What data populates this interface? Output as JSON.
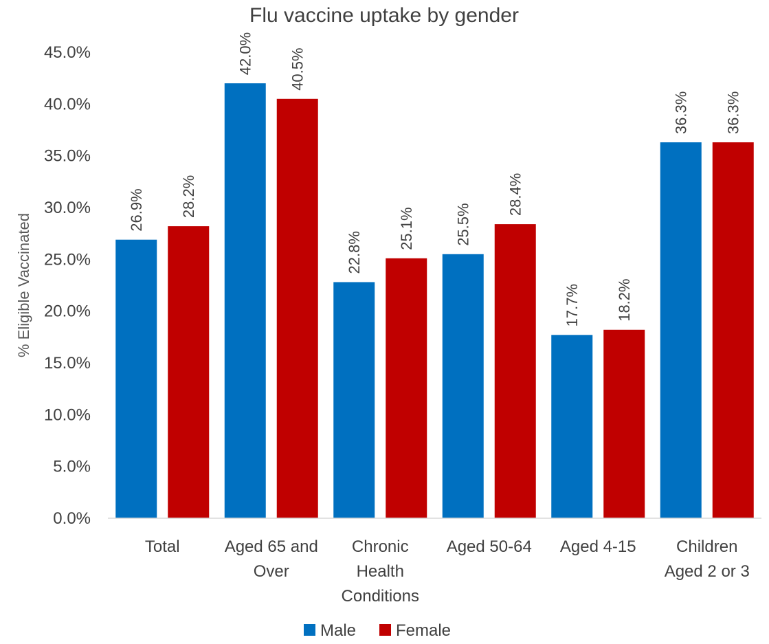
{
  "chart_data": {
    "type": "bar",
    "title": "Flu vaccine uptake by gender",
    "ylabel": "% Eligible Vaccinated",
    "xlabel": "",
    "ylim": [
      0,
      45
    ],
    "y_ticks": [
      "0.0%",
      "5.0%",
      "10.0%",
      "15.0%",
      "20.0%",
      "25.0%",
      "30.0%",
      "35.0%",
      "40.0%",
      "45.0%"
    ],
    "categories": [
      [
        "Total"
      ],
      [
        "Aged 65 and",
        "Over"
      ],
      [
        "Chronic",
        "Health",
        "Conditions"
      ],
      [
        "Aged 50-64"
      ],
      [
        "Aged 4-15"
      ],
      [
        "Children",
        "Aged 2 or 3"
      ]
    ],
    "series": [
      {
        "name": "Male",
        "color": "#0070C0",
        "values": [
          26.9,
          42.0,
          22.8,
          25.5,
          17.7,
          36.3
        ],
        "labels": [
          "26.9%",
          "42.0%",
          "22.8%",
          "25.5%",
          "17.7%",
          "36.3%"
        ]
      },
      {
        "name": "Female",
        "color": "#C00000",
        "values": [
          28.2,
          40.5,
          25.1,
          28.4,
          18.2,
          36.3
        ],
        "labels": [
          "28.2%",
          "40.5%",
          "25.1%",
          "28.4%",
          "18.2%",
          "36.3%"
        ]
      }
    ],
    "grid": false,
    "legend_position": "bottom"
  }
}
